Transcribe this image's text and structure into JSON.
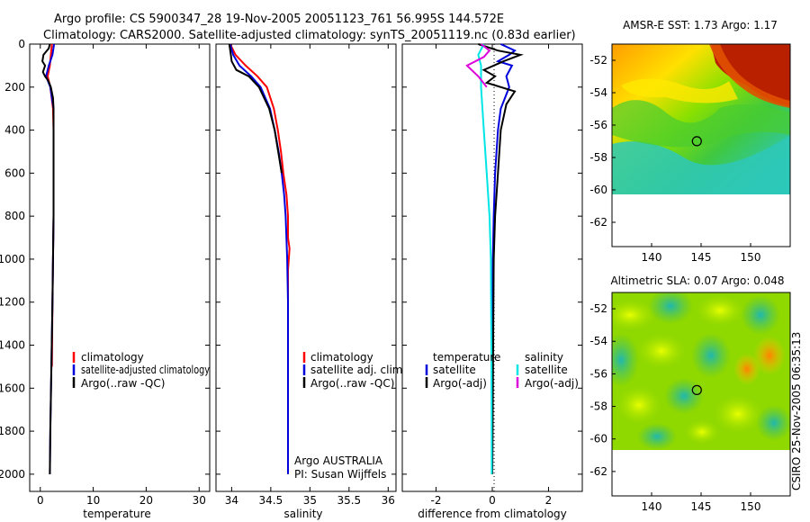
{
  "header": {
    "line1": "Argo profile: CS 5900347_28 19-Nov-2005 20051123_761 56.995S 144.572E",
    "line2": "Climatology: CARS2000. Satellite-adjusted climatology: synTS_20051119.nc (0.83d earlier)"
  },
  "credits": {
    "argo": "Argo AUSTRALIA",
    "pi": "PI: Susan Wijffels",
    "side": "CSIRO 25-Nov-2005 06:35:13"
  },
  "colors": {
    "climatology": "#ff0000",
    "satellite": "#0000dd",
    "argo": "#000000",
    "sat_diff_s": "#00e5e5",
    "argo_diff_s": "#dd00dd"
  },
  "chart_data": [
    {
      "type": "line",
      "id": "temperature",
      "xlabel": "temperature",
      "ylabel": "",
      "xlim": [
        -2,
        32
      ],
      "ylim": [
        2080,
        0
      ],
      "x_ticks": [
        0,
        10,
        20,
        30
      ],
      "y_ticks": [
        0,
        200,
        400,
        600,
        800,
        1000,
        1200,
        1400,
        1600,
        1800,
        2000
      ],
      "legend": [
        "climatology",
        "satellite-adjusted climatology",
        "Argo(..raw -QC)"
      ],
      "series": [
        {
          "name": "climatology",
          "color": "#ff0000",
          "depth": [
            0,
            50,
            100,
            150,
            200,
            300,
            400,
            600,
            800,
            1000,
            1200,
            1500
          ],
          "values": [
            2.2,
            2.0,
            1.8,
            1.4,
            1.9,
            2.4,
            2.5,
            2.5,
            2.5,
            2.4,
            2.3,
            2.2
          ]
        },
        {
          "name": "satellite-adjusted climatology",
          "color": "#0000dd",
          "depth": [
            0,
            50,
            100,
            150,
            200,
            300,
            400,
            600,
            800,
            1000,
            1200,
            1500,
            1800,
            2000
          ],
          "values": [
            2.6,
            2.3,
            1.6,
            1.1,
            1.9,
            2.5,
            2.5,
            2.5,
            2.5,
            2.4,
            2.3,
            2.1,
            1.9,
            1.8
          ]
        },
        {
          "name": "Argo(..raw -QC)",
          "color": "#000000",
          "depth": [
            0,
            20,
            50,
            80,
            100,
            130,
            150,
            170,
            200,
            250,
            300,
            400,
            600,
            800,
            1000,
            1200,
            1500,
            1800,
            2000
          ],
          "values": [
            1.8,
            1.6,
            0.6,
            0.4,
            0.9,
            0.5,
            0.9,
            1.5,
            2.0,
            2.4,
            2.5,
            2.5,
            2.5,
            2.5,
            2.4,
            2.3,
            2.1,
            1.9,
            1.8
          ]
        }
      ]
    },
    {
      "type": "line",
      "id": "salinity",
      "xlabel": "salinity",
      "xlim": [
        33.8,
        36.1
      ],
      "ylim": [
        2080,
        0
      ],
      "x_ticks": [
        34,
        34.5,
        35,
        35.5,
        36
      ],
      "legend": [
        "climatology",
        "satellite adj. clim.",
        "Argo(..raw -QC)"
      ],
      "series": [
        {
          "name": "climatology",
          "color": "#ff0000",
          "depth": [
            0,
            50,
            100,
            150,
            200,
            300,
            400,
            500,
            600,
            700,
            800,
            900,
            950,
            1000,
            1050,
            1100,
            1200,
            1500
          ],
          "values": [
            33.98,
            34.05,
            34.18,
            34.33,
            34.45,
            34.54,
            34.59,
            34.63,
            34.66,
            34.7,
            34.72,
            34.72,
            34.74,
            34.73,
            34.72,
            34.72,
            34.72,
            34.72
          ]
        },
        {
          "name": "satellite adj. clim.",
          "color": "#0000dd",
          "depth": [
            0,
            50,
            100,
            150,
            200,
            300,
            400,
            500,
            600,
            700,
            800,
            1000,
            1200,
            1500,
            1800,
            2000
          ],
          "values": [
            33.98,
            34.02,
            34.1,
            34.25,
            34.37,
            34.49,
            34.55,
            34.6,
            34.64,
            34.67,
            34.69,
            34.71,
            34.72,
            34.72,
            34.72,
            34.72
          ]
        },
        {
          "name": "Argo(..raw -QC)",
          "color": "#000000",
          "depth": [
            0,
            50,
            80,
            120,
            150,
            200,
            300,
            400,
            600
          ],
          "values": [
            33.97,
            33.99,
            34.0,
            34.06,
            34.22,
            34.35,
            34.48,
            34.55,
            34.64
          ]
        }
      ]
    },
    {
      "type": "line",
      "id": "difference",
      "xlabel": "difference from climatology",
      "xlim": [
        -3.2,
        3.2
      ],
      "ylim": [
        2080,
        0
      ],
      "x_ticks": [
        -2,
        0,
        2
      ],
      "legend_headers": [
        "temperature",
        "salinity"
      ],
      "legend_left": [
        "satellite",
        "Argo(-adj)"
      ],
      "legend_right": [
        "satellite",
        "Argo(-adj)"
      ],
      "series": [
        {
          "name": "temperature satellite",
          "color": "#0000dd",
          "depth": [
            0,
            30,
            50,
            80,
            100,
            150,
            200,
            300,
            400,
            600,
            800,
            1000,
            2000
          ],
          "values": [
            0.3,
            0.8,
            0.6,
            0.2,
            0.7,
            0.5,
            0.6,
            0.3,
            0.2,
            0.1,
            0.05,
            0.02,
            0.0
          ]
        },
        {
          "name": "temperature Argo(-adj)",
          "color": "#000000",
          "depth": [
            0,
            30,
            50,
            80,
            120,
            150,
            180,
            220,
            280,
            400,
            600,
            800,
            1000,
            2000
          ],
          "values": [
            -0.5,
            0.2,
            1.0,
            0.4,
            -0.3,
            0.1,
            -0.2,
            0.8,
            0.5,
            0.3,
            0.2,
            0.1,
            0.05,
            0.0
          ]
        },
        {
          "name": "salinity satellite",
          "color": "#00e5e5",
          "depth": [
            0,
            50,
            100,
            200,
            400,
            600,
            800,
            1000,
            1500,
            2000
          ],
          "values": [
            -0.3,
            -0.5,
            -0.4,
            -0.4,
            -0.3,
            -0.2,
            -0.1,
            -0.05,
            -0.03,
            -0.02
          ]
        },
        {
          "name": "salinity Argo(-adj)",
          "color": "#dd00dd",
          "depth": [
            0,
            30,
            60,
            100,
            150,
            200
          ],
          "values": [
            -0.4,
            -0.1,
            -0.3,
            -0.9,
            -0.5,
            -0.2
          ]
        }
      ]
    },
    {
      "type": "heatmap",
      "id": "sst",
      "title": "AMSR-E SST: 1.73 Argo: 1.17",
      "xlim": [
        136,
        154
      ],
      "ylim": [
        -63.5,
        -51
      ],
      "x_ticks": [
        140,
        145,
        150
      ],
      "y_ticks": [
        -52,
        -54,
        -56,
        -58,
        -60,
        -62
      ],
      "marker": [
        144.572,
        -56.995
      ],
      "data_ylim": [
        -60,
        -51
      ]
    },
    {
      "type": "heatmap",
      "id": "sla",
      "title": "Altimetric SLA: 0.07 Argo: 0.048",
      "xlim": [
        136,
        154
      ],
      "ylim": [
        -63.5,
        -51
      ],
      "x_ticks": [
        140,
        145,
        150
      ],
      "y_ticks": [
        -52,
        -54,
        -56,
        -58,
        -60,
        -62
      ],
      "marker": [
        144.572,
        -56.995
      ],
      "data_ylim": [
        -60,
        -51
      ]
    }
  ]
}
